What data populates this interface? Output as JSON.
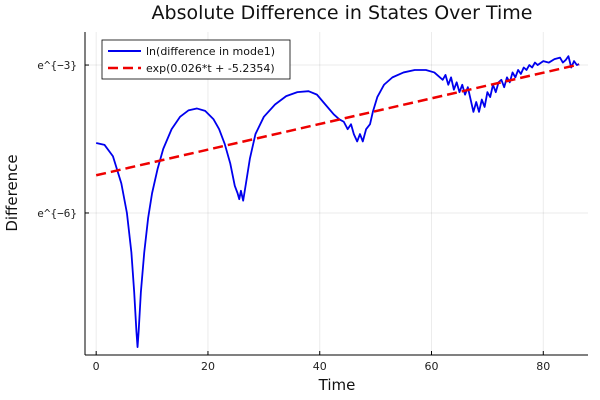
{
  "chart_data": {
    "type": "line",
    "title": "Absolute Difference in States Over Time",
    "xlabel": "Time",
    "ylabel": "Difference",
    "xlim": [
      -2,
      88
    ],
    "ylim": [
      -8.88,
      -2.33
    ],
    "x_ticks": [
      0,
      20,
      40,
      60,
      80
    ],
    "y_ticks": [
      {
        "value": -3,
        "label": "e^{−3}"
      },
      {
        "value": -6,
        "label": "e^{−6}"
      }
    ],
    "grid": true,
    "legend_position": "top-left",
    "series": [
      {
        "name": "ln(difference in mode1)",
        "color": "#0000ee",
        "style": "solid",
        "points": [
          [
            0.0,
            -4.58
          ],
          [
            1.5,
            -4.62
          ],
          [
            3.0,
            -4.85
          ],
          [
            4.5,
            -5.4
          ],
          [
            5.5,
            -6.0
          ],
          [
            6.3,
            -6.8
          ],
          [
            6.8,
            -7.6
          ],
          [
            7.2,
            -8.4
          ],
          [
            7.4,
            -8.72
          ],
          [
            7.6,
            -8.4
          ],
          [
            8.0,
            -7.6
          ],
          [
            8.6,
            -6.8
          ],
          [
            9.3,
            -6.1
          ],
          [
            10.0,
            -5.6
          ],
          [
            11.0,
            -5.1
          ],
          [
            12.0,
            -4.7
          ],
          [
            13.5,
            -4.3
          ],
          [
            15.0,
            -4.05
          ],
          [
            16.5,
            -3.92
          ],
          [
            18.0,
            -3.88
          ],
          [
            19.5,
            -3.93
          ],
          [
            21.0,
            -4.1
          ],
          [
            22.0,
            -4.3
          ],
          [
            23.0,
            -4.6
          ],
          [
            24.0,
            -5.0
          ],
          [
            24.8,
            -5.45
          ],
          [
            25.3,
            -5.6
          ],
          [
            25.6,
            -5.72
          ],
          [
            25.9,
            -5.55
          ],
          [
            26.3,
            -5.75
          ],
          [
            26.8,
            -5.4
          ],
          [
            27.5,
            -4.9
          ],
          [
            28.5,
            -4.4
          ],
          [
            30.0,
            -4.05
          ],
          [
            32.0,
            -3.8
          ],
          [
            34.0,
            -3.63
          ],
          [
            36.0,
            -3.55
          ],
          [
            38.0,
            -3.53
          ],
          [
            39.5,
            -3.6
          ],
          [
            41.0,
            -3.8
          ],
          [
            42.5,
            -4.0
          ],
          [
            43.5,
            -4.1
          ],
          [
            44.3,
            -4.15
          ],
          [
            45.0,
            -4.3
          ],
          [
            45.6,
            -4.2
          ],
          [
            46.1,
            -4.4
          ],
          [
            46.7,
            -4.55
          ],
          [
            47.2,
            -4.4
          ],
          [
            47.7,
            -4.55
          ],
          [
            48.3,
            -4.3
          ],
          [
            49.0,
            -4.2
          ],
          [
            49.5,
            -3.95
          ],
          [
            50.3,
            -3.65
          ],
          [
            51.5,
            -3.4
          ],
          [
            53.0,
            -3.25
          ],
          [
            55.0,
            -3.15
          ],
          [
            57.0,
            -3.1
          ],
          [
            59.0,
            -3.1
          ],
          [
            60.5,
            -3.15
          ],
          [
            62.0,
            -3.3
          ],
          [
            62.5,
            -3.2
          ],
          [
            63.0,
            -3.4
          ],
          [
            63.5,
            -3.25
          ],
          [
            64.0,
            -3.5
          ],
          [
            64.5,
            -3.35
          ],
          [
            65.0,
            -3.55
          ],
          [
            65.5,
            -3.4
          ],
          [
            66.0,
            -3.6
          ],
          [
            66.5,
            -3.45
          ],
          [
            67.0,
            -3.7
          ],
          [
            67.5,
            -3.95
          ],
          [
            68.0,
            -3.75
          ],
          [
            68.5,
            -3.95
          ],
          [
            69.0,
            -3.7
          ],
          [
            69.5,
            -3.85
          ],
          [
            70.0,
            -3.55
          ],
          [
            70.5,
            -3.65
          ],
          [
            71.0,
            -3.4
          ],
          [
            71.5,
            -3.55
          ],
          [
            72.0,
            -3.35
          ],
          [
            72.5,
            -3.3
          ],
          [
            73.0,
            -3.45
          ],
          [
            73.5,
            -3.25
          ],
          [
            74.0,
            -3.35
          ],
          [
            74.5,
            -3.15
          ],
          [
            75.0,
            -3.25
          ],
          [
            75.5,
            -3.1
          ],
          [
            76.0,
            -3.18
          ],
          [
            76.5,
            -3.05
          ],
          [
            77.0,
            -3.1
          ],
          [
            77.5,
            -3.0
          ],
          [
            78.0,
            -3.05
          ],
          [
            78.5,
            -2.95
          ],
          [
            79.0,
            -3.0
          ],
          [
            80.0,
            -2.92
          ],
          [
            81.0,
            -2.95
          ],
          [
            82.0,
            -2.88
          ],
          [
            83.0,
            -2.85
          ],
          [
            83.5,
            -2.95
          ],
          [
            84.0,
            -2.9
          ],
          [
            84.5,
            -2.82
          ],
          [
            85.0,
            -3.05
          ],
          [
            85.5,
            -2.92
          ],
          [
            86.0,
            -3.0
          ],
          [
            86.4,
            -2.98
          ]
        ]
      },
      {
        "name": "exp(0.026*t + -5.2354)",
        "color": "#ee0000",
        "style": "dashed",
        "slope": 0.026,
        "intercept": -5.2354,
        "x_range": [
          0,
          86.4
        ]
      }
    ]
  }
}
